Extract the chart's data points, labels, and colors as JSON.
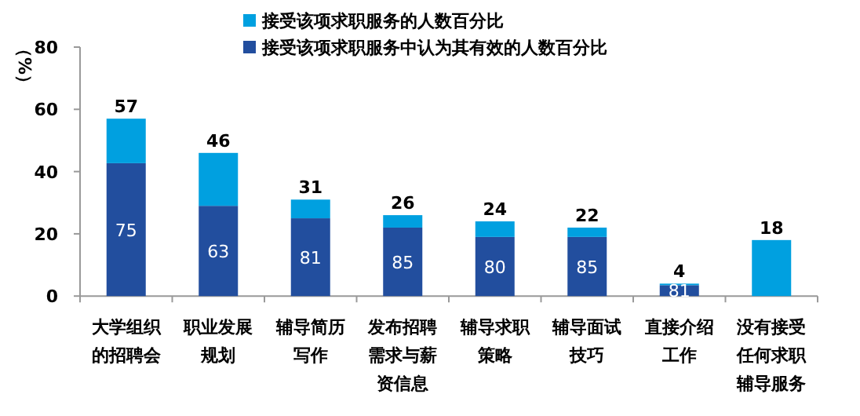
{
  "chart_data": {
    "type": "bar",
    "stacked": true,
    "ylabel": "（%）",
    "categories": [
      "大学组织的招聘会",
      "职业发展规划",
      "辅导简历写作",
      "发布招聘需求与薪资信息",
      "辅导求职策略",
      "辅导面试技巧",
      "直接介绍工作",
      "没有接受任何求职辅导服务"
    ],
    "annotations": [
      "75",
      "63",
      "81",
      "85",
      "80",
      "85",
      "81"
    ],
    "series": [
      {
        "name": "接受该项求职服务中认为其有效的人数百分比",
        "color": "#224e9e",
        "values": [
          42.7,
          29,
          25,
          22,
          19,
          19,
          3.5,
          null
        ]
      },
      {
        "name": "接受该项求职服务的人数百分比",
        "color": "#00a0e0",
        "values": [
          14.3,
          17,
          6,
          4,
          5,
          3,
          0.5,
          18
        ]
      }
    ],
    "totals": [
      "57",
      "46",
      "31",
      "26",
      "24",
      "22",
      "4",
      "18"
    ],
    "ylim": [
      0,
      80
    ],
    "yticks": [
      0,
      20,
      40,
      60,
      80
    ],
    "grid": false,
    "legend": "top"
  }
}
